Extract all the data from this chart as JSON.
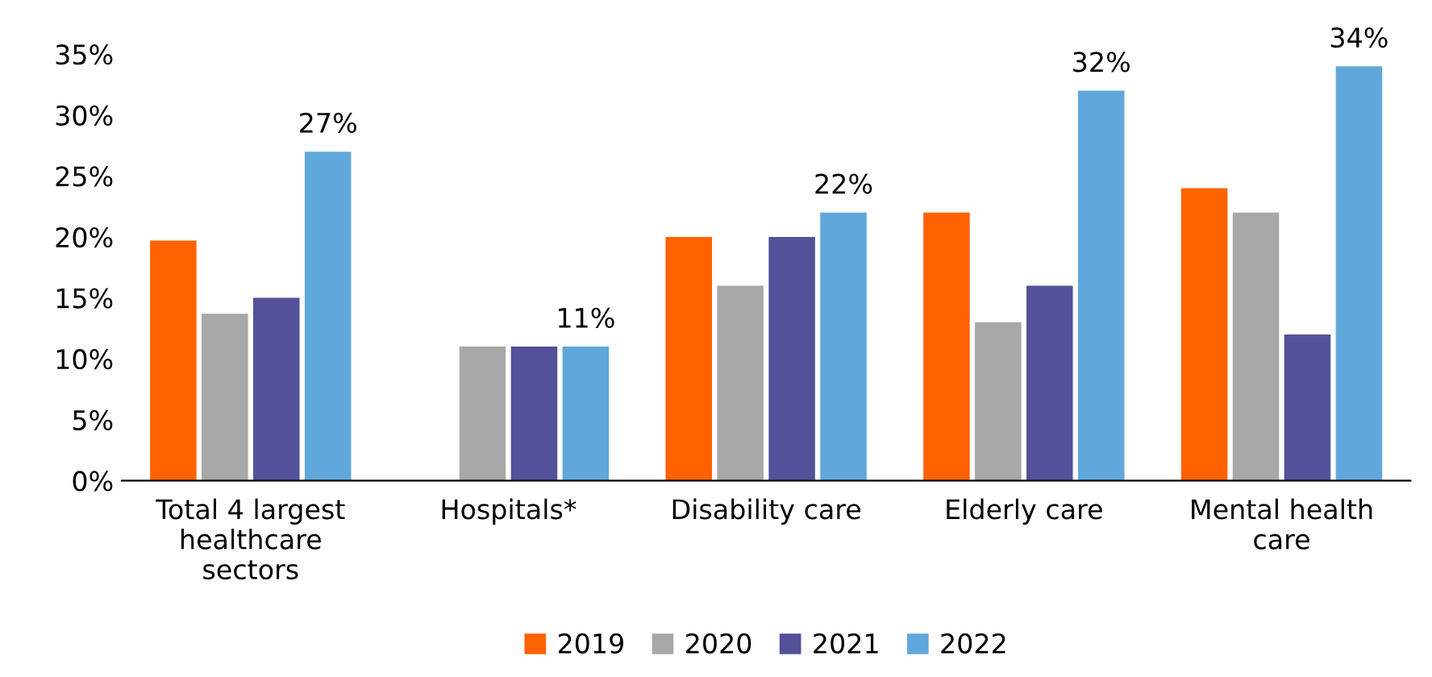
{
  "chart_data": {
    "type": "bar",
    "categories": [
      "Total 4 largest\nhealthcare\nsectors",
      "Hospitals*",
      "Disability care",
      "Elderly care",
      "Mental health\ncare"
    ],
    "series": [
      {
        "name": "2019",
        "color": "#ff6200",
        "values": [
          19.7,
          null,
          20,
          22,
          24
        ]
      },
      {
        "name": "2020",
        "color": "#a8a8a8",
        "values": [
          13.7,
          11,
          16,
          13,
          22
        ]
      },
      {
        "name": "2021",
        "color": "#525199",
        "values": [
          15,
          11,
          20,
          16,
          12
        ]
      },
      {
        "name": "2022",
        "color": "#60a8dc",
        "values": [
          27,
          11,
          22,
          32,
          34
        ],
        "value_labels": [
          "27%",
          "11%",
          "22%",
          "32%",
          "34%"
        ]
      }
    ],
    "ylim": [
      0,
      35
    ],
    "yticks": [
      {
        "value": 0,
        "label": "0%"
      },
      {
        "value": 5,
        "label": "5%"
      },
      {
        "value": 10,
        "label": "10%"
      },
      {
        "value": 15,
        "label": "15%"
      },
      {
        "value": 20,
        "label": "20%"
      },
      {
        "value": 25,
        "label": "25%"
      },
      {
        "value": 30,
        "label": "30%"
      },
      {
        "value": 35,
        "label": "35%"
      }
    ],
    "grid": false,
    "legend": "bottom"
  }
}
